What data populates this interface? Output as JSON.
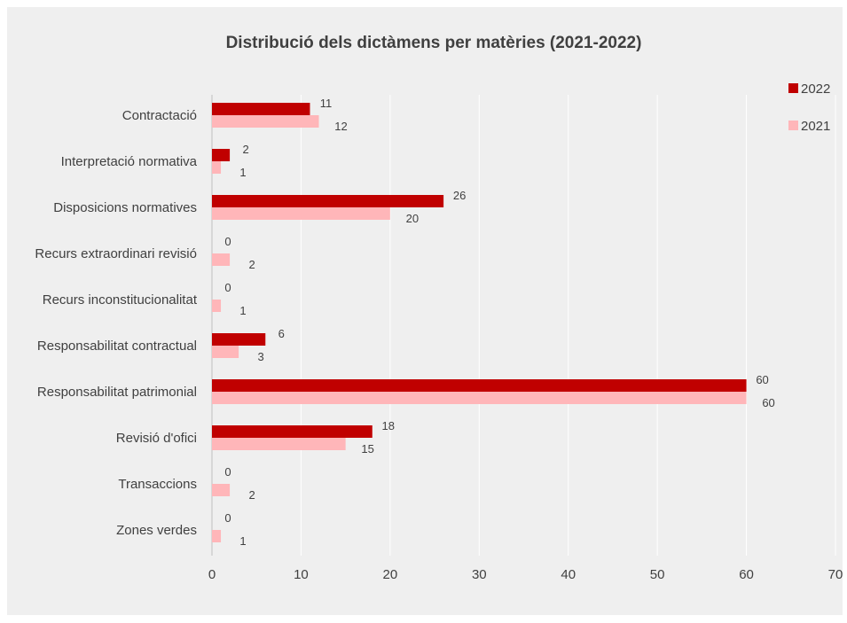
{
  "chart_data": {
    "type": "bar",
    "orientation": "horizontal",
    "title": "Distribució dels dictàmens per matèries (2021-2022)",
    "xlabel": "",
    "ylabel": "",
    "xlim": [
      0,
      70
    ],
    "x_ticks": [
      0,
      10,
      20,
      30,
      40,
      50,
      60,
      70
    ],
    "grid": true,
    "legend_position": "top-right",
    "categories": [
      "Contractació",
      "Interpretació normativa",
      "Disposicions normatives",
      "Recurs extraordinari revisió",
      "Recurs inconstitucionalitat",
      "Responsabilitat contractual",
      "Responsabilitat patrimonial",
      "Revisió d'ofici",
      "Transaccions",
      "Zones verdes"
    ],
    "series": [
      {
        "name": "2022",
        "color": "#c00000",
        "values": [
          11,
          2,
          26,
          0,
          0,
          6,
          60,
          18,
          0,
          0
        ]
      },
      {
        "name": "2021",
        "color": "#ffb6b9",
        "values": [
          12,
          1,
          20,
          2,
          1,
          3,
          60,
          15,
          2,
          1
        ]
      }
    ]
  }
}
